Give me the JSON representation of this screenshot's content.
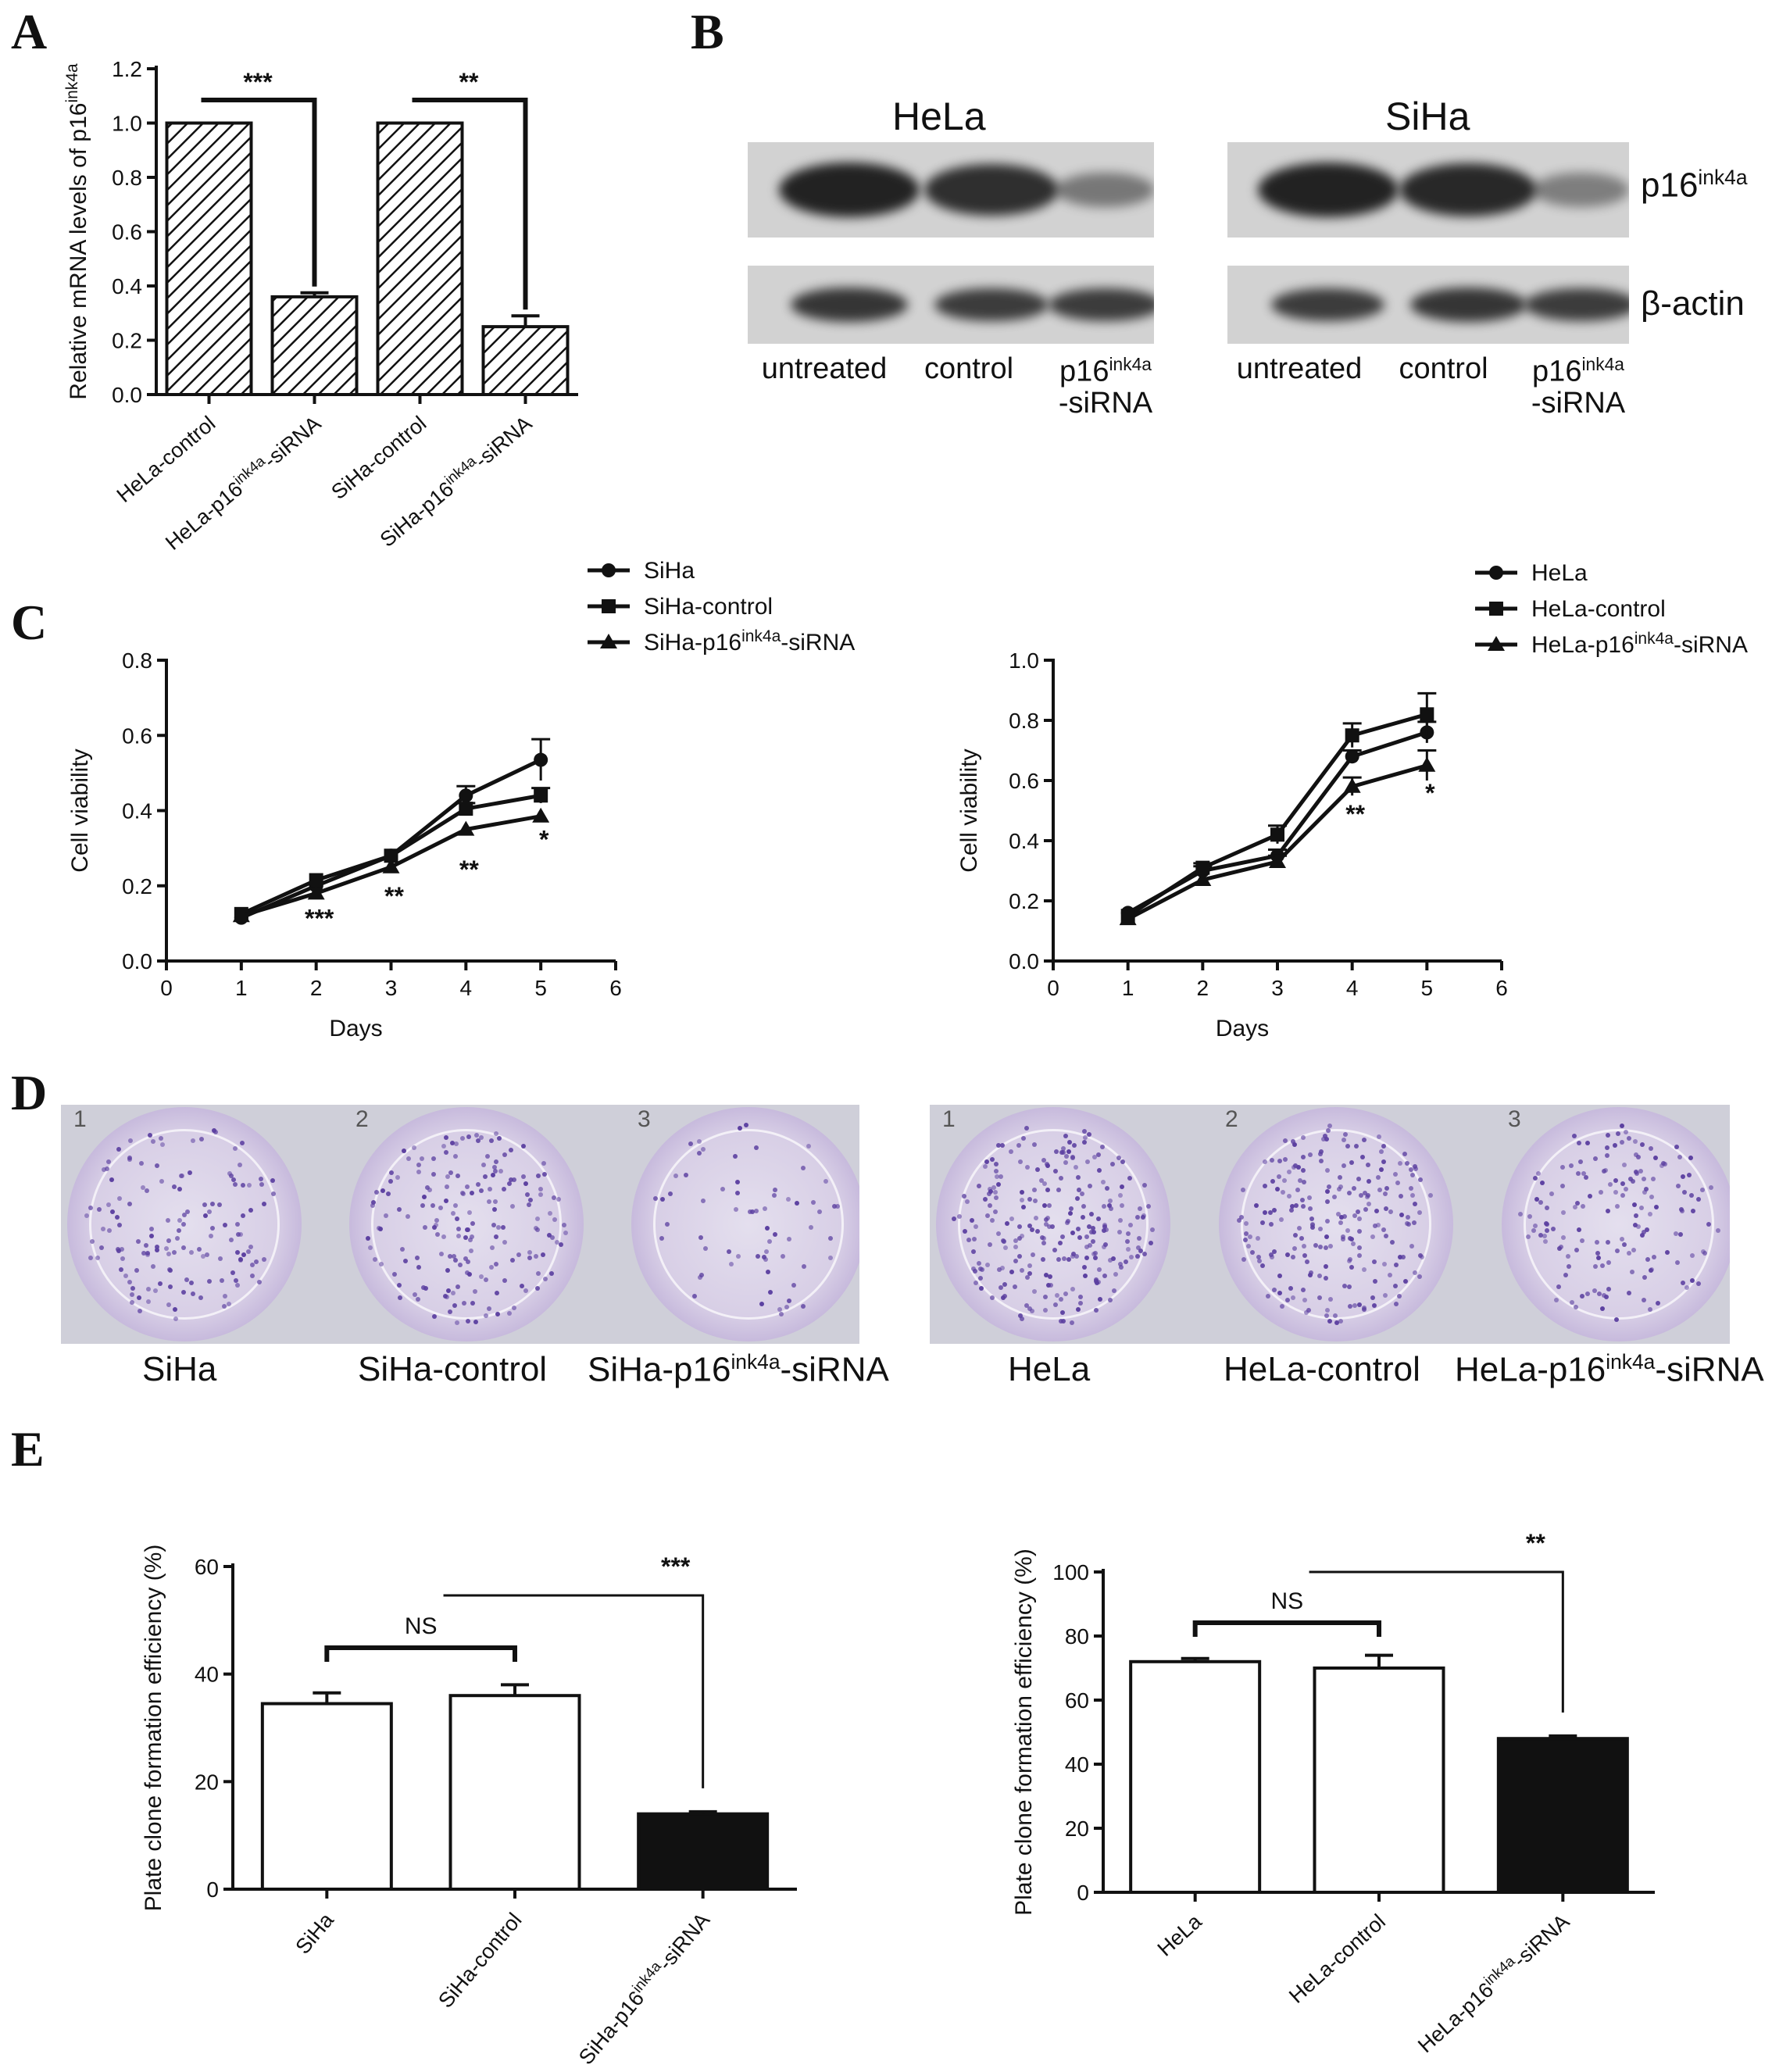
{
  "panels": {
    "A": "A",
    "B": "B",
    "C": "C",
    "D": "D",
    "E": "E"
  },
  "chart_data": [
    {
      "id": "A",
      "type": "bar",
      "ylabel": "Relative mRNA levels of p16ink4a",
      "categories": [
        "HeLa-control",
        "HeLa-p16ink4a-siRNA",
        "SiHa-control",
        "SiHa-p16ink4a-siRNA"
      ],
      "values": [
        1.0,
        0.36,
        1.0,
        0.25
      ],
      "errors": [
        0.0,
        0.015,
        0.0,
        0.04
      ],
      "ylim": [
        0,
        1.2
      ],
      "yticks": [
        "0.0",
        "0.2",
        "0.4",
        "0.6",
        "0.8",
        "1.0",
        "1.2"
      ],
      "fill": "hatched",
      "significance": [
        {
          "from": 0,
          "to": 1,
          "label": "***"
        },
        {
          "from": 2,
          "to": 3,
          "label": "**"
        }
      ]
    },
    {
      "id": "C-left",
      "type": "line",
      "xlabel": "Days",
      "ylabel": "Cell viability",
      "x": [
        1,
        2,
        3,
        4,
        5
      ],
      "xlim": [
        0,
        6
      ],
      "ylim": [
        0,
        0.8
      ],
      "xticks": [
        "0",
        "1",
        "2",
        "3",
        "4",
        "5",
        "6"
      ],
      "yticks": [
        "0.0",
        "0.2",
        "0.4",
        "0.6",
        "0.8"
      ],
      "series": [
        {
          "name": "SiHa",
          "marker": "circle",
          "values": [
            0.115,
            0.2,
            0.28,
            0.44,
            0.535
          ],
          "errors": [
            0.01,
            0.01,
            0.01,
            0.025,
            0.055
          ]
        },
        {
          "name": "SiHa-control",
          "marker": "square",
          "values": [
            0.125,
            0.215,
            0.28,
            0.405,
            0.44
          ],
          "errors": [
            0.01,
            0.01,
            0.01,
            0.015,
            0.02
          ]
        },
        {
          "name": "SiHa-p16ink4a-siRNA",
          "marker": "triangle",
          "values": [
            0.12,
            0.18,
            0.25,
            0.35,
            0.385
          ],
          "errors": [
            0.008,
            0.008,
            0.008,
            0.01,
            0.01
          ]
        }
      ],
      "significance": [
        {
          "x": 2,
          "label": "***"
        },
        {
          "x": 3,
          "label": "**"
        },
        {
          "x": 4,
          "label": "**"
        },
        {
          "x": 5,
          "label": "*"
        }
      ],
      "legend": "top-right"
    },
    {
      "id": "C-right",
      "type": "line",
      "xlabel": "Days",
      "ylabel": "Cell viability",
      "x": [
        1,
        2,
        3,
        4,
        5
      ],
      "xlim": [
        0,
        6
      ],
      "ylim": [
        0,
        1.0
      ],
      "xticks": [
        "0",
        "1",
        "2",
        "3",
        "4",
        "5",
        "6"
      ],
      "yticks": [
        "0.0",
        "0.2",
        "0.4",
        "0.6",
        "0.8",
        "1.0"
      ],
      "series": [
        {
          "name": "HeLa",
          "marker": "circle",
          "values": [
            0.16,
            0.3,
            0.35,
            0.68,
            0.76
          ],
          "errors": [
            0.01,
            0.015,
            0.02,
            0.02,
            0.035
          ]
        },
        {
          "name": "HeLa-control",
          "marker": "square",
          "values": [
            0.15,
            0.31,
            0.42,
            0.75,
            0.82
          ],
          "errors": [
            0.01,
            0.015,
            0.03,
            0.04,
            0.07
          ]
        },
        {
          "name": "HeLa-p16ink4a-siRNA",
          "marker": "triangle",
          "values": [
            0.14,
            0.27,
            0.33,
            0.58,
            0.65
          ],
          "errors": [
            0.01,
            0.01,
            0.02,
            0.03,
            0.05
          ]
        }
      ],
      "significance": [
        {
          "x": 4,
          "label": "**"
        },
        {
          "x": 5,
          "label": "*"
        }
      ],
      "legend": "top-right"
    },
    {
      "id": "E-left",
      "type": "bar",
      "ylabel": "Plate clone formation efficiency  (%)",
      "categories": [
        "SiHa",
        "SiHa-control",
        "SiHa-p16ink4a-siRNA"
      ],
      "values": [
        34.5,
        36.0,
        14.0
      ],
      "errors": [
        2.0,
        2.0,
        0.4
      ],
      "colors": [
        "#ffffff",
        "#ffffff",
        "#111111"
      ],
      "ylim": [
        0,
        60
      ],
      "yticks": [
        "0",
        "20",
        "40",
        "60"
      ],
      "significance": [
        {
          "from": 0,
          "to": 1,
          "label": "NS"
        },
        {
          "from": 0.6,
          "to": 2,
          "label": "***"
        }
      ]
    },
    {
      "id": "E-right",
      "type": "bar",
      "ylabel": "Plate clone formation efficiency  (%)",
      "categories": [
        "HeLa",
        "HeLa-control",
        "HeLa-p16ink4a-siRNA"
      ],
      "values": [
        72,
        70,
        48
      ],
      "errors": [
        1.0,
        4.0,
        0.8
      ],
      "colors": [
        "#ffffff",
        "#ffffff",
        "#111111"
      ],
      "ylim": [
        0,
        100
      ],
      "yticks": [
        "0",
        "20",
        "40",
        "60",
        "80",
        "100"
      ],
      "significance": [
        {
          "from": 0,
          "to": 1,
          "label": "NS"
        },
        {
          "from": 0.6,
          "to": 2,
          "label": "**"
        }
      ]
    }
  ],
  "blot": {
    "hela_title": "HeLa",
    "siha_title": "SiHa",
    "p16_label": "p16",
    "p16_sup": "ink4a",
    "actin_label": "β-actin",
    "lanes": [
      "untreated",
      "control"
    ],
    "sirna_line1": "p16",
    "sirna_sup": "ink4a",
    "sirna_line2": "-siRNA",
    "hela_p16_intensity": [
      1.0,
      0.9,
      0.35
    ],
    "siha_p16_intensity": [
      1.0,
      0.95,
      0.3
    ]
  },
  "plates": {
    "left_labels": [
      "SiHa",
      "SiHa-control"
    ],
    "left_sirna_pre": "SiHa-p16",
    "right_labels": [
      "HeLa",
      "HeLa-control"
    ],
    "right_sirna_pre": "HeLa-p16",
    "sup": "ink4a",
    "sirna_post": "-siRNA",
    "well_numbers": [
      "1",
      "2",
      "3"
    ],
    "left_density": [
      0.55,
      0.7,
      0.25
    ],
    "right_density": [
      0.95,
      0.85,
      0.6
    ]
  }
}
